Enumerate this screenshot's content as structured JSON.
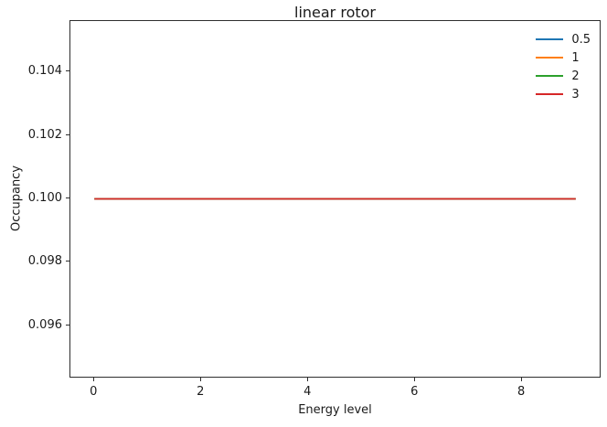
{
  "chart_data": {
    "type": "line",
    "title": "linear rotor",
    "xlabel": "Energy level",
    "ylabel": "Occupancy",
    "x": [
      0,
      1,
      2,
      3,
      4,
      5,
      6,
      7,
      8,
      9
    ],
    "series": [
      {
        "name": "0.5",
        "color": "#1f77b4",
        "values": [
          0.1,
          0.1,
          0.1,
          0.1,
          0.1,
          0.1,
          0.1,
          0.1,
          0.1,
          0.1
        ]
      },
      {
        "name": "1",
        "color": "#ff7f0e",
        "values": [
          0.1,
          0.1,
          0.1,
          0.1,
          0.1,
          0.1,
          0.1,
          0.1,
          0.1,
          0.1
        ]
      },
      {
        "name": "2",
        "color": "#2ca02c",
        "values": [
          0.1,
          0.1,
          0.1,
          0.1,
          0.1,
          0.1,
          0.1,
          0.1,
          0.1,
          0.1
        ]
      },
      {
        "name": "3",
        "color": "#d62728",
        "values": [
          0.1,
          0.1,
          0.1,
          0.1,
          0.1,
          0.1,
          0.1,
          0.1,
          0.1,
          0.1
        ]
      }
    ],
    "xlim": [
      -0.45,
      9.45
    ],
    "ylim": [
      0.0944,
      0.1056
    ],
    "xticks": {
      "values": [
        0,
        2,
        4,
        6,
        8
      ],
      "labels": [
        "0",
        "2",
        "4",
        "6",
        "8"
      ]
    },
    "yticks": {
      "values": [
        0.096,
        0.098,
        0.1,
        0.102,
        0.104
      ],
      "labels": [
        "0.096",
        "0.098",
        "0.100",
        "0.102",
        "0.104"
      ]
    },
    "legend": {
      "position": "upper right",
      "entries": [
        "0.5",
        "1",
        "2",
        "3"
      ]
    },
    "grid": false,
    "background_color": "#ffffff",
    "axes_color": "#2e2e2e",
    "text_color": "#1a1a1a"
  }
}
